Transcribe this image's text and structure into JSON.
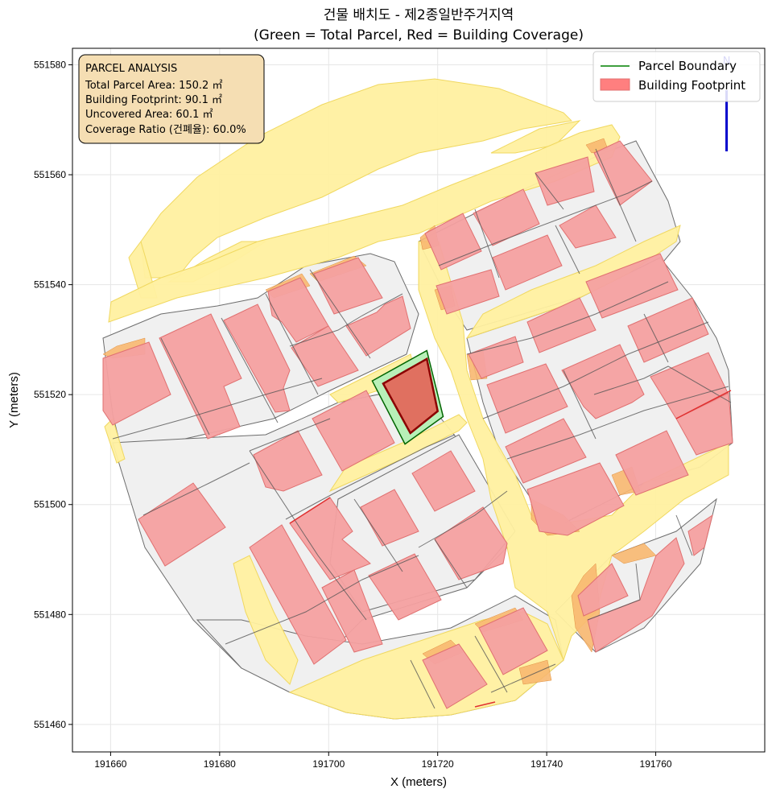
{
  "chart_data": {
    "type": "map",
    "title_line1": "건물 배치도 - 제2종일반주거지역",
    "title_line2": "(Green = Total Parcel, Red = Building Coverage)",
    "xlabel": "X (meters)",
    "ylabel": "Y (meters)",
    "xlim": [
      191653,
      191780
    ],
    "ylim": [
      551455,
      551583
    ],
    "x_ticks": [
      191660,
      191680,
      191700,
      191720,
      191740,
      191760
    ],
    "y_ticks": [
      551460,
      551480,
      551500,
      551520,
      551540,
      551560,
      551580
    ],
    "grid": true,
    "legend_position": "top-right",
    "legend": [
      {
        "label": "Parcel Boundary",
        "color": "#008000",
        "kind": "line"
      },
      {
        "label": "Building Footprint",
        "color": "#ff7f7f",
        "kind": "patch"
      }
    ],
    "info_box": {
      "title": "PARCEL ANALYSIS",
      "lines": [
        "Total Parcel Area: 150.2 ㎡",
        "Building Footprint: 90.1 ㎡",
        "Uncovered Area: 60.1 ㎡",
        "Coverage Ratio (건폐율): 60.0%"
      ]
    },
    "north_label": "N",
    "north_arrow_x": 191773,
    "colors": {
      "road": "#fff0a0",
      "parcel_fill": "#f0f0f0",
      "building": "#f4a0a0",
      "building_edge": "#e07070",
      "overlap": "#f8b870",
      "target_parcel": "#b8f0b8",
      "target_building": "#e07060",
      "info_bg": "#f5deb3"
    },
    "target_parcel": {
      "outline": [
        [
          191708,
          551522.5
        ],
        [
          191718,
          551528
        ],
        [
          191721,
          551516
        ],
        [
          191714,
          551511
        ]
      ],
      "building": [
        [
          191710,
          551522
        ],
        [
          191718,
          551526.5
        ],
        [
          191720,
          551517
        ],
        [
          191715,
          551513
        ]
      ]
    }
  }
}
